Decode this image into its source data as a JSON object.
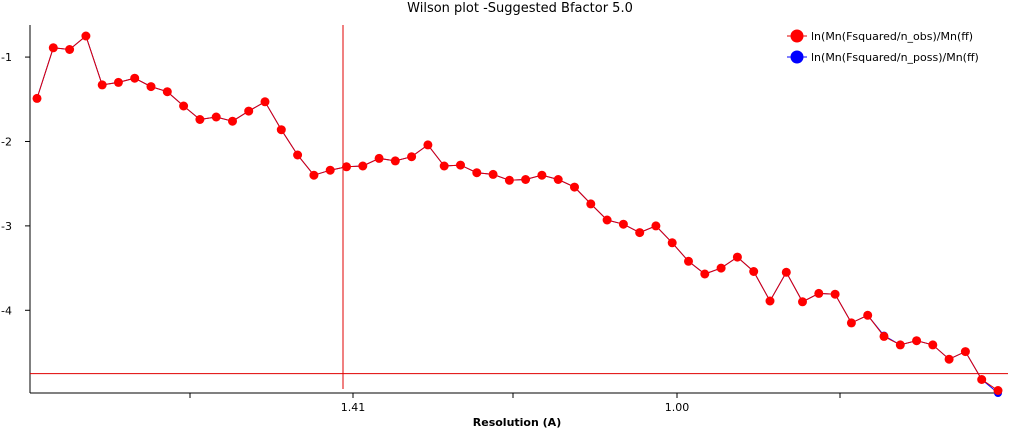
{
  "chart_data": {
    "type": "line",
    "title": "Wilson plot -Suggested Bfactor  5.0",
    "xlabel": "Resolution (A)",
    "ylabel": "",
    "x_tick_labels": [
      "1.41",
      "1.00"
    ],
    "y_ticks": [
      -1,
      -2,
      -3,
      -4
    ],
    "y_tick_labels": [
      "-1",
      "-2",
      "-3",
      "-4"
    ],
    "ylim": [
      -4.98,
      -0.62
    ],
    "grid": false,
    "legend_position": "top-right",
    "reference_lines": {
      "vertical_at_resolution": "1.41",
      "horizontal_y": -4.75,
      "color": "#e00000"
    },
    "series": [
      {
        "name": "ln(Mn(Fsquared/n_obs)/Mn(ff)",
        "color": "#ff0000",
        "line_color": "#e00000",
        "values": [
          -1.49,
          -0.89,
          -0.91,
          -0.75,
          -1.33,
          -1.3,
          -1.25,
          -1.35,
          -1.41,
          -1.58,
          -1.74,
          -1.71,
          -1.76,
          -1.64,
          -1.53,
          -1.86,
          -2.16,
          -2.4,
          -2.34,
          -2.3,
          -2.29,
          -2.2,
          -2.23,
          -2.18,
          -2.04,
          -2.29,
          -2.28,
          -2.37,
          -2.39,
          -2.46,
          -2.45,
          -2.4,
          -2.45,
          -2.54,
          -2.74,
          -2.93,
          -2.98,
          -3.08,
          -3.0,
          -3.2,
          -3.42,
          -3.57,
          -3.5,
          -3.37,
          -3.54,
          -3.89,
          -3.55,
          -3.9,
          -3.8,
          -3.81,
          -4.15,
          -4.06,
          -4.31,
          -4.41,
          -4.36,
          -4.41,
          -4.58,
          -4.49,
          -4.82,
          -4.95
        ]
      },
      {
        "name": "ln(Mn(Fsquared/n_poss)/Mn(ff)",
        "color": "#0000ff",
        "line_color": "#0000ff",
        "values": [
          -1.49,
          -0.89,
          -0.91,
          -0.75,
          -1.33,
          -1.3,
          -1.25,
          -1.35,
          -1.41,
          -1.58,
          -1.74,
          -1.71,
          -1.76,
          -1.64,
          -1.53,
          -1.86,
          -2.16,
          -2.4,
          -2.34,
          -2.3,
          -2.29,
          -2.2,
          -2.23,
          -2.18,
          -2.04,
          -2.29,
          -2.28,
          -2.37,
          -2.39,
          -2.46,
          -2.45,
          -2.4,
          -2.45,
          -2.54,
          -2.74,
          -2.93,
          -2.98,
          -3.08,
          -3.0,
          -3.2,
          -3.42,
          -3.57,
          -3.5,
          -3.37,
          -3.54,
          -3.89,
          -3.55,
          -3.9,
          -3.8,
          -3.81,
          -4.15,
          -4.06,
          -4.3,
          -4.41,
          -4.36,
          -4.41,
          -4.58,
          -4.49,
          -4.82,
          -4.98
        ]
      }
    ]
  }
}
